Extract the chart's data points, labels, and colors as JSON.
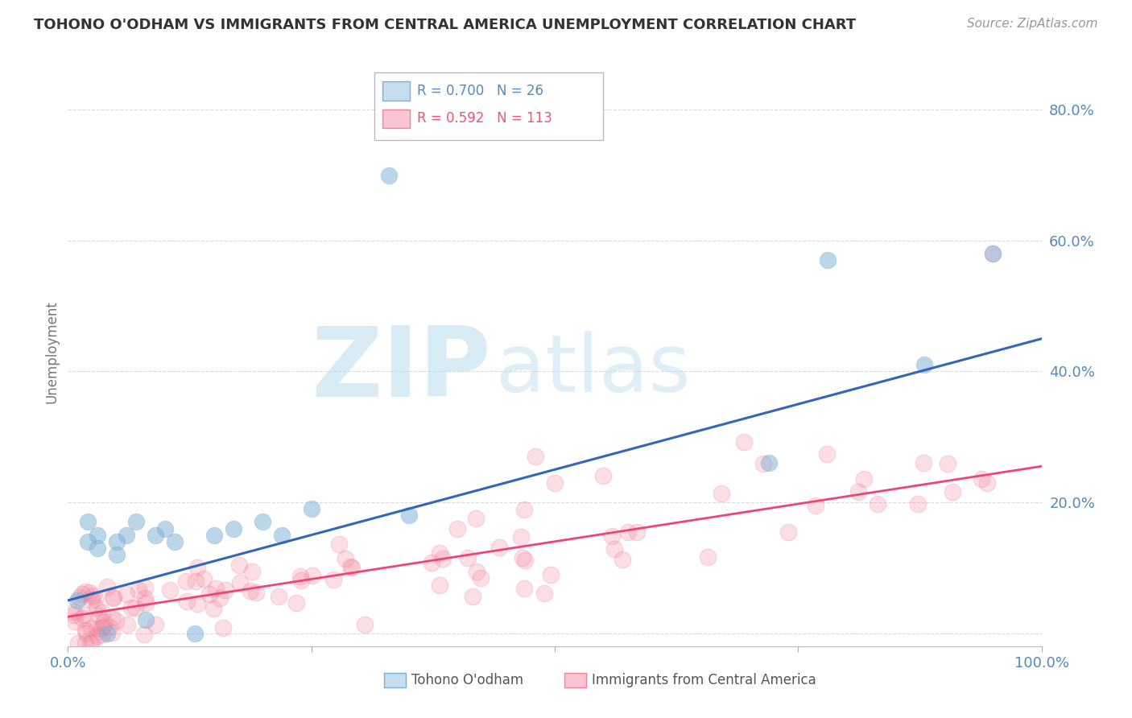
{
  "title": "TOHONO O'ODHAM VS IMMIGRANTS FROM CENTRAL AMERICA UNEMPLOYMENT CORRELATION CHART",
  "source": "Source: ZipAtlas.com",
  "ylabel": "Unemployment",
  "xlim": [
    0,
    1.0
  ],
  "ylim": [
    -0.02,
    0.88
  ],
  "blue_R": 0.7,
  "blue_N": 26,
  "pink_R": 0.592,
  "pink_N": 113,
  "blue_color": "#7BAFD4",
  "pink_color": "#F4809A",
  "blue_scatter_x": [
    0.01,
    0.02,
    0.02,
    0.03,
    0.03,
    0.04,
    0.05,
    0.05,
    0.06,
    0.07,
    0.08,
    0.09,
    0.1,
    0.11,
    0.13,
    0.15,
    0.17,
    0.2,
    0.22,
    0.25,
    0.35,
    0.72,
    0.78,
    0.88,
    0.95,
    0.33
  ],
  "blue_scatter_y": [
    0.05,
    0.17,
    0.14,
    0.15,
    0.13,
    0.0,
    0.14,
    0.12,
    0.15,
    0.17,
    0.02,
    0.15,
    0.16,
    0.14,
    0.0,
    0.15,
    0.16,
    0.17,
    0.15,
    0.19,
    0.18,
    0.26,
    0.57,
    0.41,
    0.58,
    0.7
  ],
  "blue_line_x0": 0.0,
  "blue_line_y0": 0.05,
  "blue_line_x1": 1.0,
  "blue_line_y1": 0.45,
  "pink_line_x0": 0.0,
  "pink_line_y0": 0.025,
  "pink_line_x1": 1.0,
  "pink_line_y1": 0.255,
  "watermark_zip": "ZIP",
  "watermark_atlas": "atlas",
  "background_color": "#FFFFFF",
  "grid_color": "#CCCCCC",
  "title_color": "#333333",
  "tick_label_color": "#5588BB",
  "legend_label1": "Tohono O'odham",
  "legend_label2": "Immigrants from Central America"
}
